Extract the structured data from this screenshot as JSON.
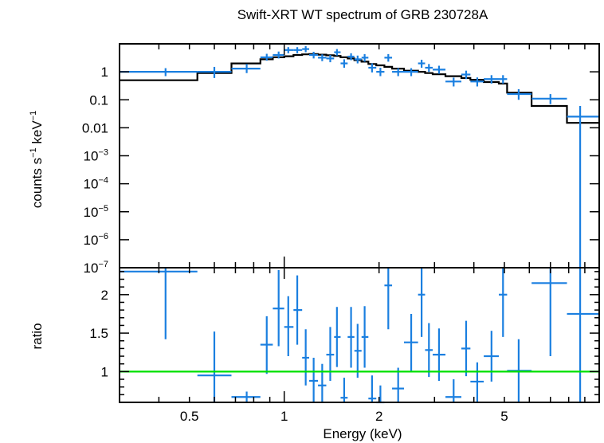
{
  "chart_data": [
    {
      "type": "scatter",
      "title": "Swift-XRT WT spectrum of GRB 230728A",
      "ylabel_main": "counts s",
      "ylabel_sup1": "−1",
      "ylabel_mid": " keV",
      "ylabel_sup2": "−1",
      "x_scale": "log",
      "y_scale": "log",
      "xlim": [
        0.3,
        10
      ],
      "ylim": [
        1e-07,
        10
      ],
      "y_ticks": [
        {
          "v": 1,
          "base": "1",
          "exp": ""
        },
        {
          "v": 0.1,
          "base": "0.1",
          "exp": ""
        },
        {
          "v": 0.01,
          "base": "0.01",
          "exp": ""
        },
        {
          "v": 0.001,
          "base": "10",
          "exp": "−3"
        },
        {
          "v": 0.0001,
          "base": "10",
          "exp": "−4"
        },
        {
          "v": 1e-05,
          "base": "10",
          "exp": "−5"
        },
        {
          "v": 1e-06,
          "base": "10",
          "exp": "−6"
        },
        {
          "v": 1e-07,
          "base": "10",
          "exp": "−7"
        }
      ],
      "colors": {
        "data": "#1a7fe0",
        "model": "#000000"
      },
      "data_points": [
        {
          "x": 0.42,
          "xlo": 0.3,
          "xhi": 0.53,
          "y": 1.0,
          "ylo": 0.7,
          "yhi": 1.35
        },
        {
          "x": 0.6,
          "xlo": 0.53,
          "xhi": 0.68,
          "y": 1.0,
          "ylo": 0.6,
          "yhi": 1.5
        },
        {
          "x": 0.76,
          "xlo": 0.68,
          "xhi": 0.84,
          "y": 1.3,
          "ylo": 0.9,
          "yhi": 1.9
        },
        {
          "x": 0.88,
          "xlo": 0.84,
          "xhi": 0.92,
          "y": 3.3,
          "ylo": 2.5,
          "yhi": 4.4
        },
        {
          "x": 0.96,
          "xlo": 0.92,
          "xhi": 1.0,
          "y": 4.0,
          "ylo": 3.0,
          "yhi": 5.3
        },
        {
          "x": 1.03,
          "xlo": 1.0,
          "xhi": 1.07,
          "y": 6.0,
          "ylo": 4.6,
          "yhi": 7.6
        },
        {
          "x": 1.1,
          "xlo": 1.07,
          "xhi": 1.14,
          "y": 6.0,
          "ylo": 4.6,
          "yhi": 7.6
        },
        {
          "x": 1.17,
          "xlo": 1.14,
          "xhi": 1.2,
          "y": 6.5,
          "ylo": 5.0,
          "yhi": 8.3
        },
        {
          "x": 1.24,
          "xlo": 1.2,
          "xhi": 1.28,
          "y": 4.0,
          "ylo": 3.0,
          "yhi": 5.2
        },
        {
          "x": 1.32,
          "xlo": 1.28,
          "xhi": 1.36,
          "y": 3.2,
          "ylo": 2.4,
          "yhi": 4.2
        },
        {
          "x": 1.4,
          "xlo": 1.36,
          "xhi": 1.44,
          "y": 3.0,
          "ylo": 2.2,
          "yhi": 4.0
        },
        {
          "x": 1.47,
          "xlo": 1.44,
          "xhi": 1.51,
          "y": 5.0,
          "ylo": 3.8,
          "yhi": 6.5
        },
        {
          "x": 1.55,
          "xlo": 1.51,
          "xhi": 1.59,
          "y": 2.0,
          "ylo": 1.4,
          "yhi": 2.8
        },
        {
          "x": 1.63,
          "xlo": 1.59,
          "xhi": 1.67,
          "y": 3.5,
          "ylo": 2.6,
          "yhi": 4.6
        },
        {
          "x": 1.71,
          "xlo": 1.67,
          "xhi": 1.76,
          "y": 2.8,
          "ylo": 2.0,
          "yhi": 3.8
        },
        {
          "x": 1.8,
          "xlo": 1.76,
          "xhi": 1.85,
          "y": 3.2,
          "ylo": 2.3,
          "yhi": 4.3
        },
        {
          "x": 1.9,
          "xlo": 1.85,
          "xhi": 1.96,
          "y": 1.4,
          "ylo": 0.95,
          "yhi": 2.0
        },
        {
          "x": 2.02,
          "xlo": 1.96,
          "xhi": 2.08,
          "y": 1.0,
          "ylo": 0.7,
          "yhi": 1.4
        },
        {
          "x": 2.14,
          "xlo": 2.08,
          "xhi": 2.2,
          "y": 3.2,
          "ylo": 2.3,
          "yhi": 4.3
        },
        {
          "x": 2.3,
          "xlo": 2.2,
          "xhi": 2.4,
          "y": 1.0,
          "ylo": 0.7,
          "yhi": 1.35
        },
        {
          "x": 2.53,
          "xlo": 2.4,
          "xhi": 2.66,
          "y": 1.0,
          "ylo": 0.7,
          "yhi": 1.35
        },
        {
          "x": 2.73,
          "xlo": 2.66,
          "xhi": 2.8,
          "y": 2.0,
          "ylo": 1.4,
          "yhi": 2.7
        },
        {
          "x": 2.88,
          "xlo": 2.8,
          "xhi": 2.96,
          "y": 1.4,
          "ylo": 1.0,
          "yhi": 1.9
        },
        {
          "x": 3.1,
          "xlo": 2.96,
          "xhi": 3.25,
          "y": 1.2,
          "ylo": 0.85,
          "yhi": 1.65
        },
        {
          "x": 3.45,
          "xlo": 3.25,
          "xhi": 3.65,
          "y": 0.45,
          "ylo": 0.3,
          "yhi": 0.62
        },
        {
          "x": 3.78,
          "xlo": 3.65,
          "xhi": 3.9,
          "y": 0.8,
          "ylo": 0.55,
          "yhi": 1.1
        },
        {
          "x": 4.1,
          "xlo": 3.9,
          "xhi": 4.3,
          "y": 0.45,
          "ylo": 0.3,
          "yhi": 0.63
        },
        {
          "x": 4.55,
          "xlo": 4.3,
          "xhi": 4.8,
          "y": 0.55,
          "ylo": 0.38,
          "yhi": 0.76
        },
        {
          "x": 4.95,
          "xlo": 4.8,
          "xhi": 5.1,
          "y": 0.55,
          "ylo": 0.38,
          "yhi": 0.76
        },
        {
          "x": 5.55,
          "xlo": 5.1,
          "xhi": 6.1,
          "y": 0.16,
          "ylo": 0.1,
          "yhi": 0.24
        },
        {
          "x": 7.0,
          "xlo": 6.1,
          "xhi": 7.9,
          "y": 0.11,
          "ylo": 0.07,
          "yhi": 0.16
        },
        {
          "x": 8.7,
          "xlo": 7.9,
          "xhi": 10.0,
          "y": 0.025,
          "ylo": 1e-07,
          "yhi": 0.06
        }
      ],
      "model_steps": [
        {
          "xlo": 0.3,
          "xhi": 0.53,
          "y": 0.5
        },
        {
          "xlo": 0.53,
          "xhi": 0.68,
          "y": 0.9
        },
        {
          "xlo": 0.68,
          "xhi": 0.84,
          "y": 2.0
        },
        {
          "xlo": 0.84,
          "xhi": 0.92,
          "y": 2.8
        },
        {
          "xlo": 0.92,
          "xhi": 1.0,
          "y": 3.3
        },
        {
          "xlo": 1.0,
          "xhi": 1.07,
          "y": 3.6
        },
        {
          "xlo": 1.07,
          "xhi": 1.14,
          "y": 4.0
        },
        {
          "xlo": 1.14,
          "xhi": 1.2,
          "y": 4.2
        },
        {
          "xlo": 1.2,
          "xhi": 1.28,
          "y": 4.3
        },
        {
          "xlo": 1.28,
          "xhi": 1.36,
          "y": 4.1
        },
        {
          "xlo": 1.36,
          "xhi": 1.44,
          "y": 3.9
        },
        {
          "xlo": 1.44,
          "xhi": 1.51,
          "y": 3.7
        },
        {
          "xlo": 1.51,
          "xhi": 1.59,
          "y": 3.3
        },
        {
          "xlo": 1.59,
          "xhi": 1.67,
          "y": 3.0
        },
        {
          "xlo": 1.67,
          "xhi": 1.76,
          "y": 2.6
        },
        {
          "xlo": 1.76,
          "xhi": 1.85,
          "y": 2.3
        },
        {
          "xlo": 1.85,
          "xhi": 1.96,
          "y": 1.9
        },
        {
          "xlo": 1.96,
          "xhi": 2.08,
          "y": 1.7
        },
        {
          "xlo": 2.08,
          "xhi": 2.2,
          "y": 1.5
        },
        {
          "xlo": 2.2,
          "xhi": 2.4,
          "y": 1.3
        },
        {
          "xlo": 2.4,
          "xhi": 2.66,
          "y": 1.1
        },
        {
          "xlo": 2.66,
          "xhi": 2.8,
          "y": 1.0
        },
        {
          "xlo": 2.8,
          "xhi": 2.96,
          "y": 0.9
        },
        {
          "xlo": 2.96,
          "xhi": 3.25,
          "y": 0.82
        },
        {
          "xlo": 3.25,
          "xhi": 3.65,
          "y": 0.7
        },
        {
          "xlo": 3.65,
          "xhi": 3.9,
          "y": 0.6
        },
        {
          "xlo": 3.9,
          "xhi": 4.3,
          "y": 0.52
        },
        {
          "xlo": 4.3,
          "xhi": 4.8,
          "y": 0.43
        },
        {
          "xlo": 4.8,
          "xhi": 5.1,
          "y": 0.38
        },
        {
          "xlo": 5.1,
          "xhi": 6.1,
          "y": 0.18
        },
        {
          "xlo": 6.1,
          "xhi": 7.9,
          "y": 0.06
        },
        {
          "xlo": 7.9,
          "xhi": 10.0,
          "y": 0.015
        }
      ]
    },
    {
      "type": "scatter",
      "ylabel": "ratio",
      "xlabel": "Energy (keV)",
      "x_scale": "log",
      "y_scale": "linear",
      "xlim": [
        0.3,
        10
      ],
      "ylim": [
        0.6,
        2.35
      ],
      "x_ticks": [
        {
          "v": 0.5,
          "label": "0.5"
        },
        {
          "v": 1,
          "label": "1"
        },
        {
          "v": 2,
          "label": "2"
        },
        {
          "v": 5,
          "label": "5"
        }
      ],
      "y_ticks": [
        {
          "v": 1,
          "label": "1"
        },
        {
          "v": 1.5,
          "label": "1.5"
        },
        {
          "v": 2,
          "label": "2"
        }
      ],
      "reference_line": 1,
      "colors": {
        "data": "#1a7fe0",
        "reference": "#00e000"
      },
      "data_points": [
        {
          "x": 0.42,
          "xlo": 0.3,
          "xhi": 0.53,
          "y": 2.3,
          "ylo": 1.42,
          "yhi": 2.4
        },
        {
          "x": 0.6,
          "xlo": 0.53,
          "xhi": 0.68,
          "y": 0.95,
          "ylo": 0.6,
          "yhi": 1.52
        },
        {
          "x": 0.76,
          "xlo": 0.68,
          "xhi": 0.84,
          "y": 0.67,
          "ylo": 0.6,
          "yhi": 0.74
        },
        {
          "x": 0.88,
          "xlo": 0.84,
          "xhi": 0.92,
          "y": 1.35,
          "ylo": 0.97,
          "yhi": 1.72
        },
        {
          "x": 0.96,
          "xlo": 0.92,
          "xhi": 1.0,
          "y": 1.82,
          "ylo": 1.33,
          "yhi": 2.32
        },
        {
          "x": 1.03,
          "xlo": 1.0,
          "xhi": 1.07,
          "y": 1.58,
          "ylo": 1.2,
          "yhi": 1.98
        },
        {
          "x": 1.1,
          "xlo": 1.07,
          "xhi": 1.14,
          "y": 1.8,
          "ylo": 1.35,
          "yhi": 2.25
        },
        {
          "x": 1.17,
          "xlo": 1.14,
          "xhi": 1.2,
          "y": 1.18,
          "ylo": 0.82,
          "yhi": 1.55
        },
        {
          "x": 1.24,
          "xlo": 1.2,
          "xhi": 1.28,
          "y": 0.88,
          "ylo": 0.6,
          "yhi": 1.18
        },
        {
          "x": 1.32,
          "xlo": 1.28,
          "xhi": 1.36,
          "y": 0.82,
          "ylo": 0.6,
          "yhi": 1.1
        },
        {
          "x": 1.4,
          "xlo": 1.36,
          "xhi": 1.44,
          "y": 1.22,
          "ylo": 0.88,
          "yhi": 1.58
        },
        {
          "x": 1.47,
          "xlo": 1.44,
          "xhi": 1.51,
          "y": 1.45,
          "ylo": 1.06,
          "yhi": 1.84
        },
        {
          "x": 1.55,
          "xlo": 1.51,
          "xhi": 1.59,
          "y": 0.66,
          "ylo": 0.6,
          "yhi": 0.92
        },
        {
          "x": 1.63,
          "xlo": 1.59,
          "xhi": 1.67,
          "y": 1.45,
          "ylo": 1.05,
          "yhi": 1.84
        },
        {
          "x": 1.71,
          "xlo": 1.67,
          "xhi": 1.76,
          "y": 1.27,
          "ylo": 0.92,
          "yhi": 1.62
        },
        {
          "x": 1.8,
          "xlo": 1.76,
          "xhi": 1.85,
          "y": 1.45,
          "ylo": 1.05,
          "yhi": 1.85
        },
        {
          "x": 1.9,
          "xlo": 1.85,
          "xhi": 1.96,
          "y": 0.65,
          "ylo": 0.6,
          "yhi": 0.95
        },
        {
          "x": 2.02,
          "xlo": 1.96,
          "xhi": 2.08,
          "y": 0.58,
          "ylo": 0.6,
          "yhi": 0.82
        },
        {
          "x": 2.14,
          "xlo": 2.08,
          "xhi": 2.2,
          "y": 2.12,
          "ylo": 1.55,
          "yhi": 2.35
        },
        {
          "x": 2.3,
          "xlo": 2.2,
          "xhi": 2.4,
          "y": 0.78,
          "ylo": 0.6,
          "yhi": 1.05
        },
        {
          "x": 2.53,
          "xlo": 2.4,
          "xhi": 2.66,
          "y": 1.38,
          "ylo": 1.0,
          "yhi": 1.75
        },
        {
          "x": 2.73,
          "xlo": 2.66,
          "xhi": 2.8,
          "y": 2.0,
          "ylo": 1.45,
          "yhi": 2.35
        },
        {
          "x": 2.88,
          "xlo": 2.8,
          "xhi": 2.96,
          "y": 1.28,
          "ylo": 0.93,
          "yhi": 1.63
        },
        {
          "x": 3.1,
          "xlo": 2.96,
          "xhi": 3.25,
          "y": 1.22,
          "ylo": 0.88,
          "yhi": 1.56
        },
        {
          "x": 3.45,
          "xlo": 3.25,
          "xhi": 3.65,
          "y": 0.67,
          "ylo": 0.6,
          "yhi": 0.9
        },
        {
          "x": 3.78,
          "xlo": 3.65,
          "xhi": 3.9,
          "y": 1.3,
          "ylo": 0.94,
          "yhi": 1.66
        },
        {
          "x": 4.1,
          "xlo": 3.9,
          "xhi": 4.3,
          "y": 0.87,
          "ylo": 0.6,
          "yhi": 1.12
        },
        {
          "x": 4.55,
          "xlo": 4.3,
          "xhi": 4.8,
          "y": 1.2,
          "ylo": 0.87,
          "yhi": 1.53
        },
        {
          "x": 4.95,
          "xlo": 4.8,
          "xhi": 5.1,
          "y": 2.0,
          "ylo": 1.45,
          "yhi": 2.35
        },
        {
          "x": 5.55,
          "xlo": 5.1,
          "xhi": 6.1,
          "y": 1.01,
          "ylo": 0.6,
          "yhi": 1.42
        },
        {
          "x": 7.0,
          "xlo": 6.1,
          "xhi": 7.9,
          "y": 2.15,
          "ylo": 1.2,
          "yhi": 2.35
        },
        {
          "x": 8.7,
          "xlo": 7.9,
          "xhi": 10.0,
          "y": 1.75,
          "ylo": 0.6,
          "yhi": 2.35
        }
      ]
    }
  ]
}
